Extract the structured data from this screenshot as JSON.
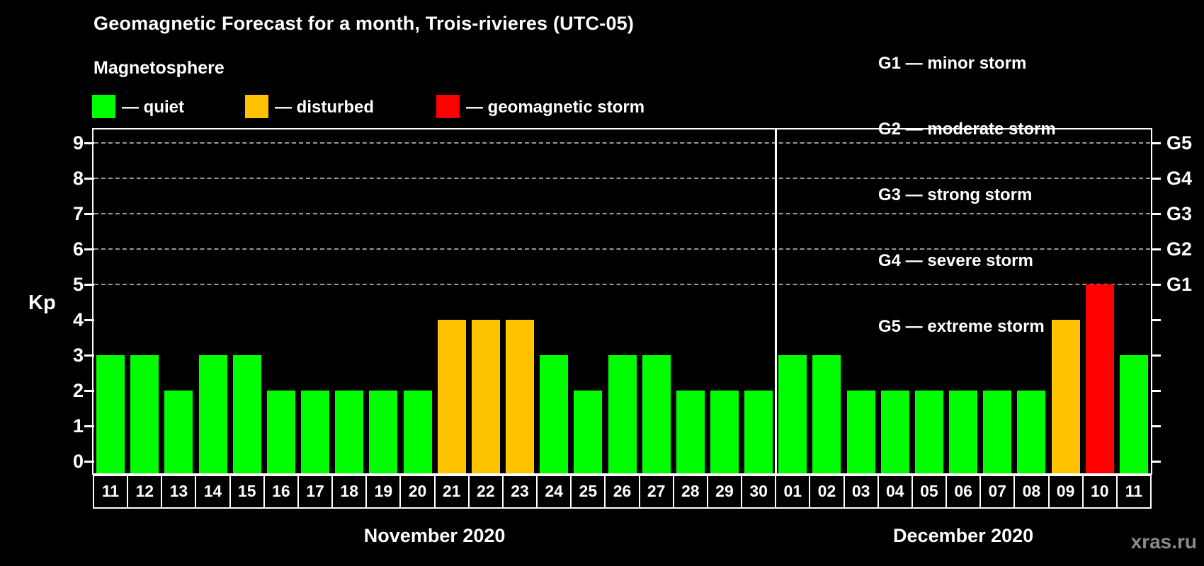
{
  "title": "Geomagnetic Forecast for a month, Trois-rivieres (UTC-05)",
  "legend": {
    "heading": "Magnetosphere",
    "items": [
      {
        "status": "quiet",
        "label": "— quiet"
      },
      {
        "status": "disturbed",
        "label": "— disturbed"
      },
      {
        "status": "storm",
        "label": "— geomagnetic storm"
      }
    ]
  },
  "g_legend": [
    "G1 — minor storm",
    "G2 — moderate storm",
    "G3 — strong storm",
    "G4 — severe storm",
    "G5 — extreme storm"
  ],
  "watermark": "xras.ru",
  "chart_data": {
    "type": "bar",
    "title": "Geomagnetic Forecast for a month, Trois-rivieres (UTC-05)",
    "ylabel": "Kp",
    "ylim": [
      -0.35,
      9.4
    ],
    "yticks": [
      0,
      1,
      2,
      3,
      4,
      5,
      6,
      7,
      8,
      9
    ],
    "grid_levels": [
      5,
      6,
      7,
      8,
      9
    ],
    "grid_on": true,
    "legend_position": "top",
    "right_axis": [
      {
        "level": 5,
        "label": "G1"
      },
      {
        "level": 6,
        "label": "G2"
      },
      {
        "level": 7,
        "label": "G3"
      },
      {
        "level": 8,
        "label": "G4"
      },
      {
        "level": 9,
        "label": "G5"
      }
    ],
    "colors": {
      "quiet": "#00ff00",
      "disturbed": "#ffc200",
      "storm": "#ff0000"
    },
    "months": [
      {
        "label": "November 2020",
        "days": [
          {
            "day": "11",
            "kp": 3,
            "status": "quiet"
          },
          {
            "day": "12",
            "kp": 3,
            "status": "quiet"
          },
          {
            "day": "13",
            "kp": 2,
            "status": "quiet"
          },
          {
            "day": "14",
            "kp": 3,
            "status": "quiet"
          },
          {
            "day": "15",
            "kp": 3,
            "status": "quiet"
          },
          {
            "day": "16",
            "kp": 2,
            "status": "quiet"
          },
          {
            "day": "17",
            "kp": 2,
            "status": "quiet"
          },
          {
            "day": "18",
            "kp": 2,
            "status": "quiet"
          },
          {
            "day": "19",
            "kp": 2,
            "status": "quiet"
          },
          {
            "day": "20",
            "kp": 2,
            "status": "quiet"
          },
          {
            "day": "21",
            "kp": 4,
            "status": "disturbed"
          },
          {
            "day": "22",
            "kp": 4,
            "status": "disturbed"
          },
          {
            "day": "23",
            "kp": 4,
            "status": "disturbed"
          },
          {
            "day": "24",
            "kp": 3,
            "status": "quiet"
          },
          {
            "day": "25",
            "kp": 2,
            "status": "quiet"
          },
          {
            "day": "26",
            "kp": 3,
            "status": "quiet"
          },
          {
            "day": "27",
            "kp": 3,
            "status": "quiet"
          },
          {
            "day": "28",
            "kp": 2,
            "status": "quiet"
          },
          {
            "day": "29",
            "kp": 2,
            "status": "quiet"
          },
          {
            "day": "30",
            "kp": 2,
            "status": "quiet"
          }
        ]
      },
      {
        "label": "December 2020",
        "days": [
          {
            "day": "01",
            "kp": 3,
            "status": "quiet"
          },
          {
            "day": "02",
            "kp": 3,
            "status": "quiet"
          },
          {
            "day": "03",
            "kp": 2,
            "status": "quiet"
          },
          {
            "day": "04",
            "kp": 2,
            "status": "quiet"
          },
          {
            "day": "05",
            "kp": 2,
            "status": "quiet"
          },
          {
            "day": "06",
            "kp": 2,
            "status": "quiet"
          },
          {
            "day": "07",
            "kp": 2,
            "status": "quiet"
          },
          {
            "day": "08",
            "kp": 2,
            "status": "quiet"
          },
          {
            "day": "09",
            "kp": 4,
            "status": "disturbed"
          },
          {
            "day": "10",
            "kp": 5,
            "status": "storm"
          },
          {
            "day": "11",
            "kp": 3,
            "status": "quiet"
          }
        ]
      }
    ]
  }
}
